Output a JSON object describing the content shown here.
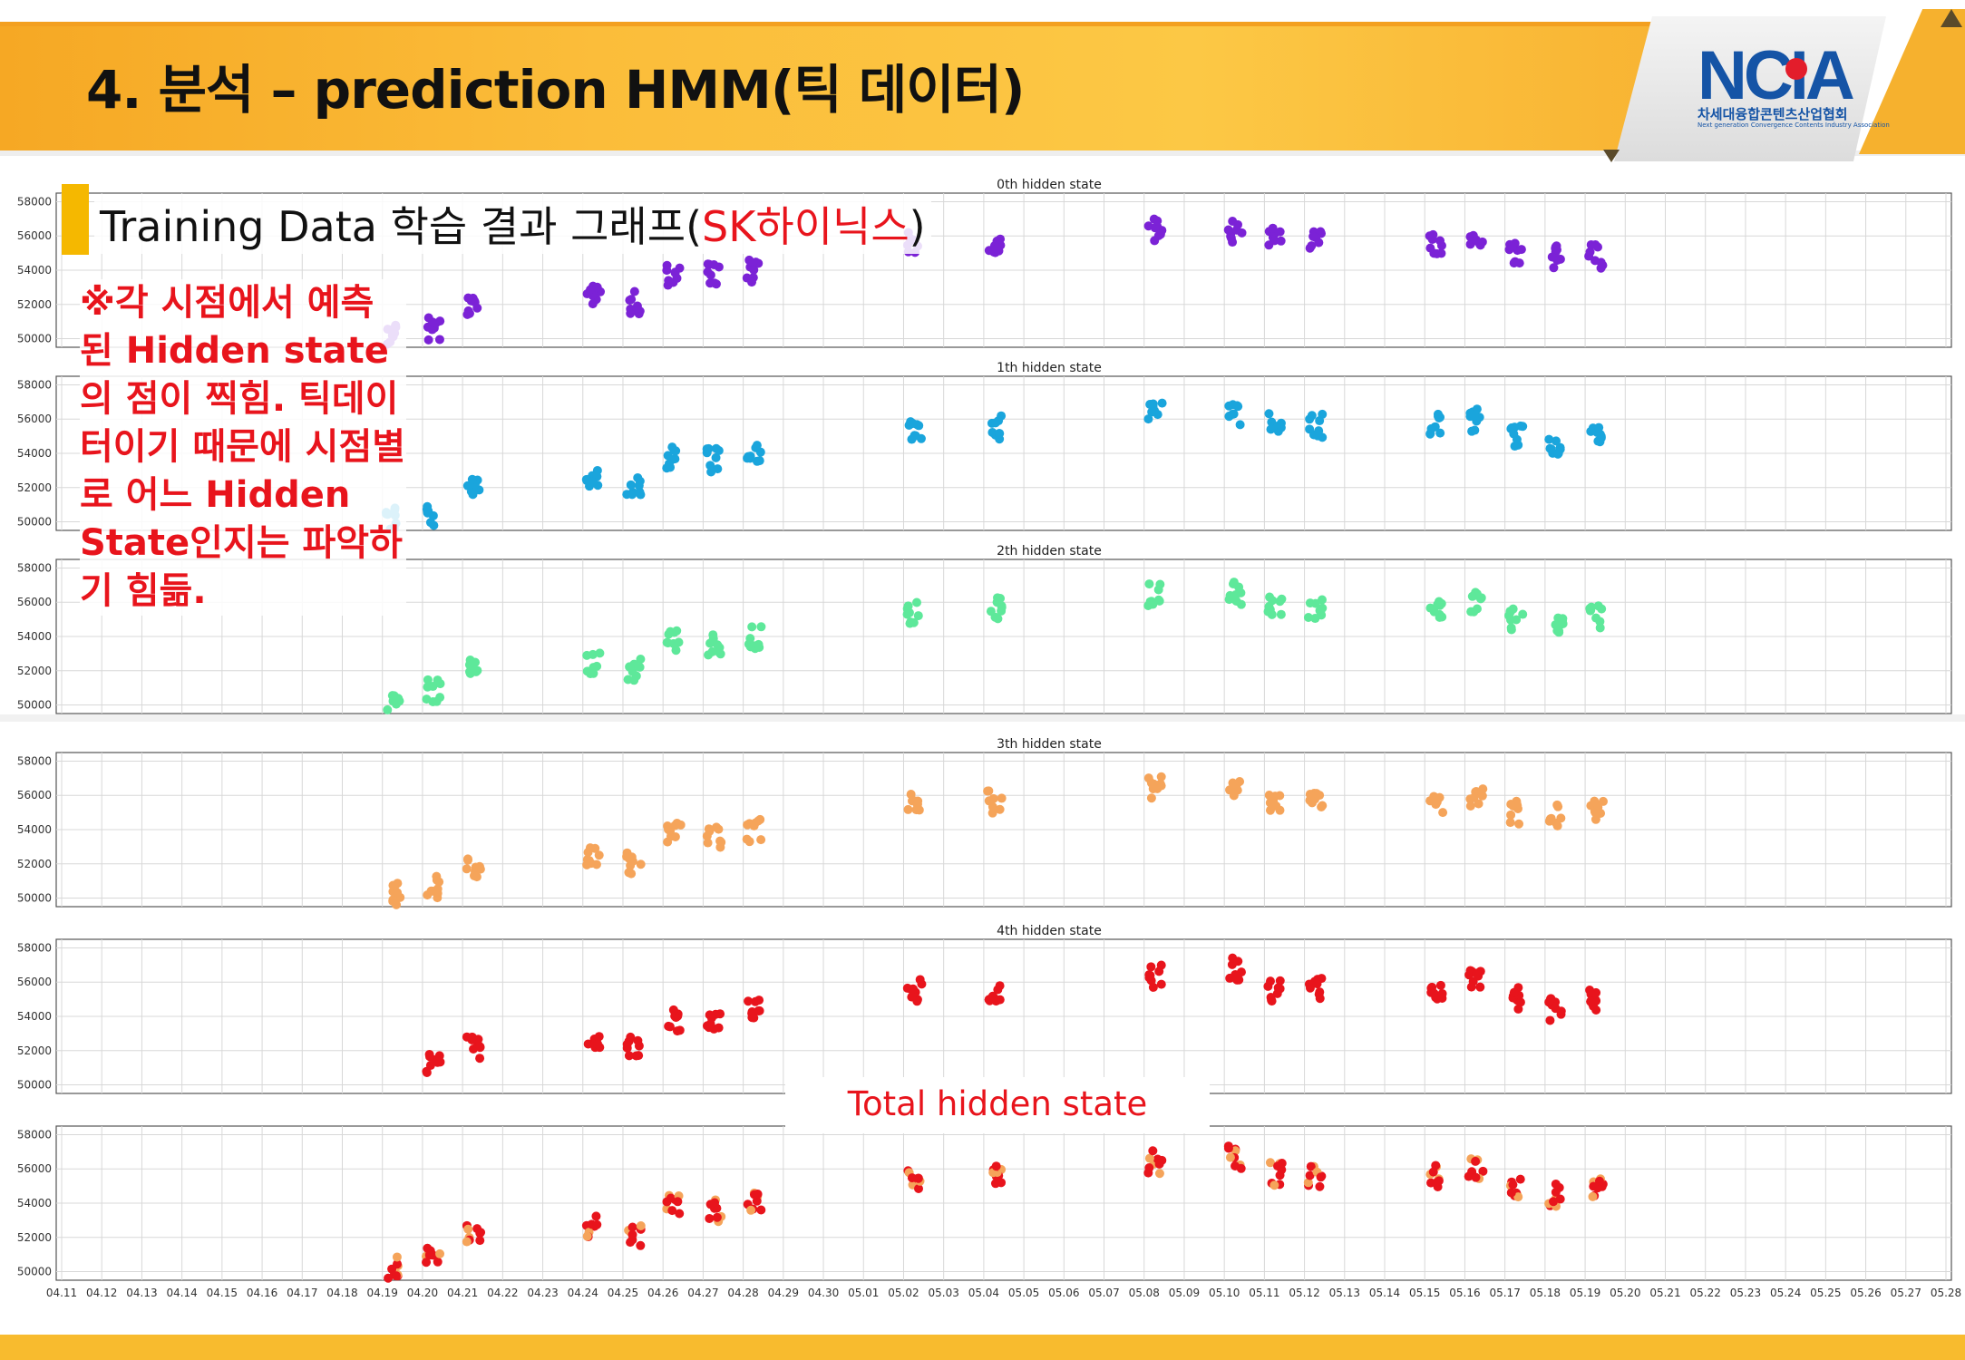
{
  "header": {
    "title": "4. 분석 – prediction HMM(틱 데이터)"
  },
  "logo": {
    "text": "NCIA",
    "kor": "차세대융합콘텐츠산업협회",
    "eng": "Next generation Convergence Contents Industry Association"
  },
  "section": {
    "title_prefix": "Training Data 학습 결과 그래프(",
    "title_highlight": "SK하이닉스",
    "title_suffix": ")"
  },
  "note": "※각 시점에서 예측된 Hidden state의 점이 찍힘. 틱데이터이기 때문에 시점별로 어느 Hidden State인지는 파악하기 힘듦.",
  "total_label": "Total hidden state",
  "colors": {
    "accent": "#f5b800",
    "highlight": "#e8141c",
    "logo": "#1554a6"
  },
  "chart_data": [
    {
      "type": "scatter",
      "title": "0th hidden state",
      "color": "#7b22d6",
      "ylim": [
        49500,
        58500
      ],
      "yticks": [
        "58000",
        "56000",
        "54000",
        "52000",
        "50000"
      ],
      "points": [
        [
          "04.19",
          50200
        ],
        [
          "04.20",
          50600
        ],
        [
          "04.21",
          52000
        ],
        [
          "04.24",
          52500
        ],
        [
          "04.25",
          52100
        ],
        [
          "04.26",
          53800
        ],
        [
          "04.27",
          53700
        ],
        [
          "04.28",
          53900
        ],
        [
          "05.02",
          55600
        ],
        [
          "05.04",
          55700
        ],
        [
          "05.08",
          56400
        ],
        [
          "05.10",
          56200
        ],
        [
          "05.11",
          55800
        ],
        [
          "05.12",
          55600
        ],
        [
          "05.15",
          55600
        ],
        [
          "05.16",
          55800
        ],
        [
          "05.17",
          55000
        ],
        [
          "05.18",
          54800
        ],
        [
          "05.19",
          54800
        ]
      ]
    },
    {
      "type": "scatter",
      "title": "1th hidden state",
      "color": "#1aa5dc",
      "ylim": [
        49500,
        58500
      ],
      "yticks": [
        "58000",
        "56000",
        "54000",
        "52000",
        "50000"
      ],
      "points": [
        [
          "04.19",
          50200
        ],
        [
          "04.20",
          50400
        ],
        [
          "04.21",
          52100
        ],
        [
          "04.24",
          52400
        ],
        [
          "04.25",
          52000
        ],
        [
          "04.26",
          53800
        ],
        [
          "04.27",
          53600
        ],
        [
          "04.28",
          53800
        ],
        [
          "05.02",
          55400
        ],
        [
          "05.04",
          55500
        ],
        [
          "05.08",
          56400
        ],
        [
          "05.10",
          56300
        ],
        [
          "05.11",
          55800
        ],
        [
          "05.12",
          55600
        ],
        [
          "05.15",
          55600
        ],
        [
          "05.16",
          55900
        ],
        [
          "05.17",
          55000
        ],
        [
          "05.18",
          54600
        ],
        [
          "05.19",
          55000
        ]
      ]
    },
    {
      "type": "scatter",
      "title": "2th hidden state",
      "color": "#5ee89a",
      "ylim": [
        49500,
        58500
      ],
      "yticks": [
        "58000",
        "56000",
        "54000",
        "52000",
        "50000"
      ],
      "points": [
        [
          "04.19",
          50100
        ],
        [
          "04.20",
          50800
        ],
        [
          "04.21",
          52000
        ],
        [
          "04.24",
          52500
        ],
        [
          "04.25",
          52000
        ],
        [
          "04.26",
          53800
        ],
        [
          "04.27",
          53500
        ],
        [
          "04.28",
          53900
        ],
        [
          "05.02",
          55400
        ],
        [
          "05.04",
          55600
        ],
        [
          "05.08",
          56400
        ],
        [
          "05.10",
          56500
        ],
        [
          "05.11",
          55700
        ],
        [
          "05.12",
          55600
        ],
        [
          "05.15",
          55500
        ],
        [
          "05.16",
          55900
        ],
        [
          "05.17",
          55000
        ],
        [
          "05.18",
          54700
        ],
        [
          "05.19",
          55100
        ]
      ]
    },
    {
      "type": "scatter",
      "title": "3th hidden state",
      "color": "#f5a45a",
      "ylim": [
        49500,
        58500
      ],
      "yticks": [
        "58000",
        "56000",
        "54000",
        "52000",
        "50000"
      ],
      "points": [
        [
          "04.19",
          50200
        ],
        [
          "04.20",
          50600
        ],
        [
          "04.21",
          51900
        ],
        [
          "04.24",
          52400
        ],
        [
          "04.25",
          52000
        ],
        [
          "04.26",
          53800
        ],
        [
          "04.27",
          53600
        ],
        [
          "04.28",
          53900
        ],
        [
          "05.02",
          55400
        ],
        [
          "05.04",
          55600
        ],
        [
          "05.08",
          56400
        ],
        [
          "05.10",
          56300
        ],
        [
          "05.11",
          55800
        ],
        [
          "05.12",
          55600
        ],
        [
          "05.15",
          55600
        ],
        [
          "05.16",
          55900
        ],
        [
          "05.17",
          55000
        ],
        [
          "05.18",
          54800
        ],
        [
          "05.19",
          55000
        ]
      ]
    },
    {
      "type": "scatter",
      "title": "4th hidden state",
      "color": "#e8141c",
      "ylim": [
        49500,
        58500
      ],
      "yticks": [
        "58000",
        "56000",
        "54000",
        "52000",
        "50000"
      ],
      "points": [
        [
          "04.20",
          51100
        ],
        [
          "04.21",
          52200
        ],
        [
          "04.24",
          52700
        ],
        [
          "04.25",
          52100
        ],
        [
          "04.26",
          53800
        ],
        [
          "04.27",
          53500
        ],
        [
          "04.28",
          54300
        ],
        [
          "05.02",
          55500
        ],
        [
          "05.04",
          55500
        ],
        [
          "05.08",
          56300
        ],
        [
          "05.10",
          56800
        ],
        [
          "05.11",
          55500
        ],
        [
          "05.12",
          55600
        ],
        [
          "05.15",
          55600
        ],
        [
          "05.16",
          56000
        ],
        [
          "05.17",
          55100
        ],
        [
          "05.18",
          54400
        ],
        [
          "05.19",
          55000
        ]
      ]
    },
    {
      "type": "scatter",
      "title": "",
      "color": "#e8141c",
      "secondary_color": "#f5a45a",
      "ylim": [
        49500,
        58500
      ],
      "yticks": [
        "58000",
        "56000",
        "54000",
        "52000",
        "50000"
      ],
      "points": [
        [
          "04.19",
          50200
        ],
        [
          "04.20",
          50900
        ],
        [
          "04.21",
          52000
        ],
        [
          "04.24",
          52600
        ],
        [
          "04.25",
          52000
        ],
        [
          "04.26",
          53800
        ],
        [
          "04.27",
          53500
        ],
        [
          "04.28",
          54100
        ],
        [
          "05.02",
          55500
        ],
        [
          "05.04",
          55600
        ],
        [
          "05.08",
          56400
        ],
        [
          "05.10",
          56700
        ],
        [
          "05.11",
          55700
        ],
        [
          "05.12",
          55600
        ],
        [
          "05.15",
          55600
        ],
        [
          "05.16",
          55900
        ],
        [
          "05.17",
          55000
        ],
        [
          "05.18",
          54500
        ],
        [
          "05.19",
          55000
        ]
      ]
    }
  ],
  "x_ticks": [
    "04.11",
    "04.12",
    "04.13",
    "04.14",
    "04.15",
    "04.16",
    "04.17",
    "04.18",
    "04.19",
    "04.20",
    "04.21",
    "04.22",
    "04.23",
    "04.24",
    "04.25",
    "04.26",
    "04.27",
    "04.28",
    "04.29",
    "04.30",
    "05.01",
    "05.02",
    "05.03",
    "05.04",
    "05.05",
    "05.06",
    "05.07",
    "05.08",
    "05.09",
    "05.10",
    "05.11",
    "05.12",
    "05.13",
    "05.14",
    "05.15",
    "05.16",
    "05.17",
    "05.18",
    "05.19",
    "05.20",
    "05.21",
    "05.22",
    "05.23",
    "05.24",
    "05.25",
    "05.26",
    "05.27",
    "05.28"
  ]
}
